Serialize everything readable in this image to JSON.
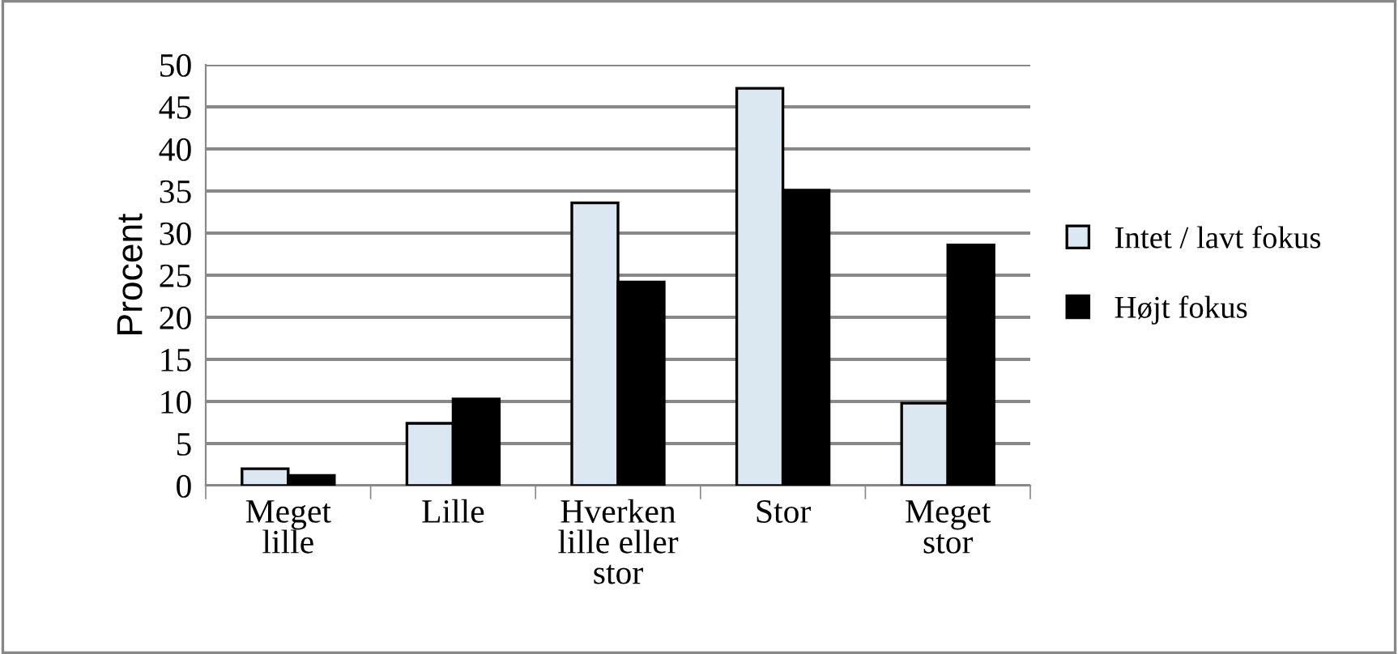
{
  "chart_data": {
    "type": "bar",
    "ylabel": "Procent",
    "categories": [
      "Meget\nlille",
      "Lille",
      "Hverken\nlille eller\nstor",
      "Stor",
      "Meget\nstor"
    ],
    "series": [
      {
        "name": "Intet / lavt fokus",
        "color": "#dbe8f2",
        "values": [
          2.0,
          7.4,
          33.6,
          47.2,
          9.8
        ]
      },
      {
        "name": "Højt fokus",
        "color": "#000000",
        "values": [
          1.2,
          10.3,
          24.2,
          35.1,
          28.6
        ]
      }
    ],
    "ylim": [
      0,
      50
    ],
    "yticks": [
      0,
      5,
      10,
      15,
      20,
      25,
      30,
      35,
      40,
      45,
      50
    ],
    "grid": "y",
    "legend": "right"
  }
}
